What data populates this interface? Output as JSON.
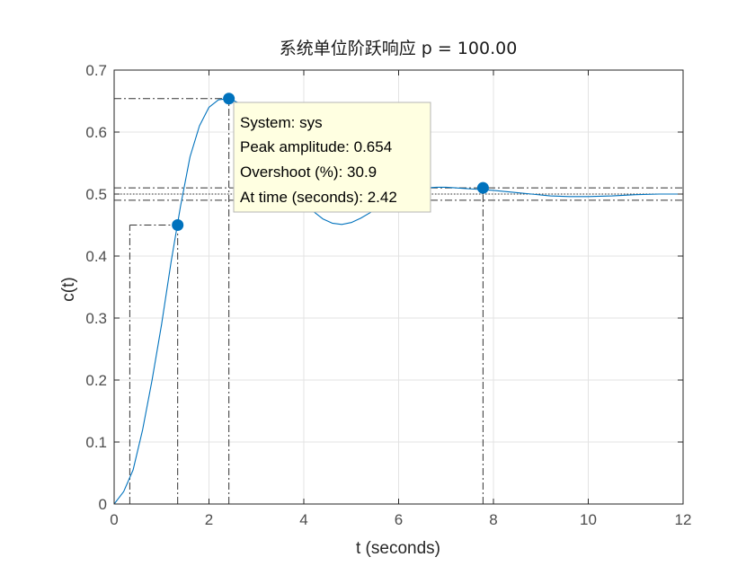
{
  "chart_data": {
    "type": "line",
    "title": "系统单位阶跃响应 p = 100.00",
    "xlabel": "t (seconds)",
    "ylabel": "c(t)",
    "xlim": [
      0,
      12
    ],
    "ylim": [
      0,
      0.7
    ],
    "x_ticks": [
      "0",
      "2",
      "4",
      "6",
      "8",
      "10",
      "12"
    ],
    "y_ticks": [
      "0",
      "0.1",
      "0.2",
      "0.3",
      "0.4",
      "0.5",
      "0.6",
      "0.7"
    ],
    "grid": true,
    "series": [
      {
        "color": "#0072BD",
        "x": [
          0,
          0.2,
          0.4,
          0.6,
          0.8,
          1.0,
          1.2,
          1.4,
          1.6,
          1.8,
          2.0,
          2.2,
          2.42,
          2.6,
          2.8,
          3.0,
          3.2,
          3.4,
          3.6,
          3.8,
          4.0,
          4.2,
          4.4,
          4.6,
          4.8,
          5.0,
          5.2,
          5.4,
          5.6,
          5.8,
          6.0,
          6.2,
          6.4,
          6.6,
          6.8,
          7.0,
          7.2,
          7.4,
          7.6,
          7.8,
          8.0,
          8.4,
          8.8,
          9.2,
          9.6,
          10.0,
          10.5,
          11.0,
          11.5,
          12.0
        ],
        "y": [
          0,
          0.02,
          0.055,
          0.12,
          0.2,
          0.29,
          0.39,
          0.48,
          0.56,
          0.61,
          0.64,
          0.652,
          0.654,
          0.648,
          0.63,
          0.61,
          0.585,
          0.56,
          0.535,
          0.51,
          0.49,
          0.472,
          0.46,
          0.453,
          0.451,
          0.454,
          0.461,
          0.47,
          0.48,
          0.49,
          0.498,
          0.504,
          0.508,
          0.51,
          0.511,
          0.511,
          0.51,
          0.509,
          0.508,
          0.507,
          0.506,
          0.503,
          0.5,
          0.497,
          0.496,
          0.496,
          0.497,
          0.499,
          0.5,
          0.5
        ]
      }
    ],
    "markers": [
      {
        "name": "rise",
        "x": 1.34,
        "y": 0.45
      },
      {
        "name": "peak",
        "x": 2.42,
        "y": 0.654
      },
      {
        "name": "settling",
        "x": 7.78,
        "y": 0.51
      }
    ],
    "reference_lines": {
      "final_value": 0.5,
      "settling_band": [
        0.49,
        0.51
      ],
      "rise_start": {
        "x": 0.33,
        "y": 0.05
      },
      "rise_end": {
        "x": 1.34,
        "y": 0.45
      }
    },
    "datatip": {
      "lines": [
        "System: sys",
        "Peak amplitude: 0.654",
        "Overshoot (%): 30.9",
        "At time (seconds): 2.42"
      ]
    }
  }
}
